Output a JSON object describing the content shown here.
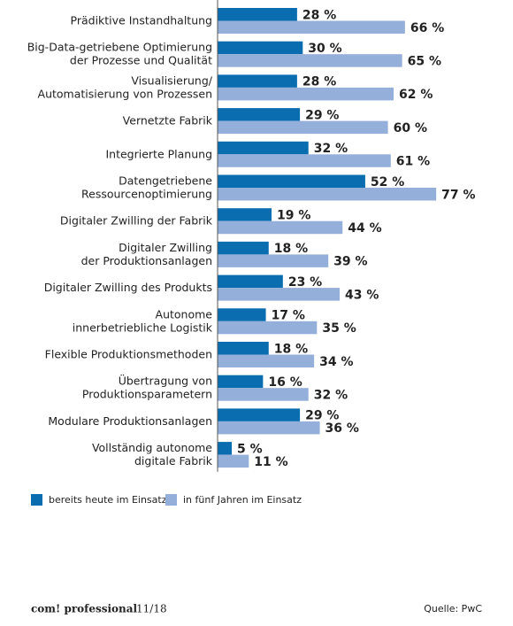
{
  "chart_data": {
    "type": "bar",
    "orientation": "horizontal",
    "categories": [
      [
        "Prädiktive Instandhaltung"
      ],
      [
        "Big-Data-getriebene Optimierung",
        "der Prozesse und Qualität"
      ],
      [
        "Visualisierung/",
        "Automatisierung von Prozessen"
      ],
      [
        "Vernetzte Fabrik"
      ],
      [
        "Integrierte Planung"
      ],
      [
        "Datengetriebene",
        "Ressourcenoptimierung"
      ],
      [
        "Digitaler Zwilling der Fabrik"
      ],
      [
        "Digitaler Zwilling",
        "der Produktionsanlagen"
      ],
      [
        "Digitaler Zwilling des Produkts"
      ],
      [
        "Autonome",
        "innerbetriebliche Logistik"
      ],
      [
        "Flexible Produktionsmethoden"
      ],
      [
        "Übertragung von",
        "Produktionsparametern"
      ],
      [
        "Modulare Produktionsanlagen"
      ],
      [
        "Vollständig autonome",
        "digitale Fabrik"
      ]
    ],
    "series": [
      {
        "name": "bereits heute im Einsatz",
        "color": "#0a6db0",
        "values": [
          28,
          30,
          28,
          29,
          32,
          52,
          19,
          18,
          23,
          17,
          18,
          16,
          29,
          5
        ],
        "value_labels": [
          "28 %",
          "30 %",
          "28 %",
          "29 %",
          "32 %",
          "52 %",
          "19 %",
          "18 %",
          "23 %",
          "17 %",
          "18 %",
          "16 %",
          "29 %",
          "5 %"
        ]
      },
      {
        "name": "in fünf Jahren im Einsatz",
        "color": "#94afd9",
        "values": [
          66,
          65,
          62,
          60,
          61,
          77,
          44,
          39,
          43,
          35,
          34,
          32,
          36,
          11
        ],
        "value_labels": [
          "66 %",
          "65 %",
          "62 %",
          "60 %",
          "61 %",
          "77 %",
          "44 %",
          "39 %",
          "43 %",
          "35 %",
          "34 %",
          "32 %",
          "36 %",
          "11 %"
        ]
      }
    ],
    "footer": {
      "brand": "com! professional",
      "issue": "11/18",
      "source": "Quelle: PwC"
    }
  }
}
